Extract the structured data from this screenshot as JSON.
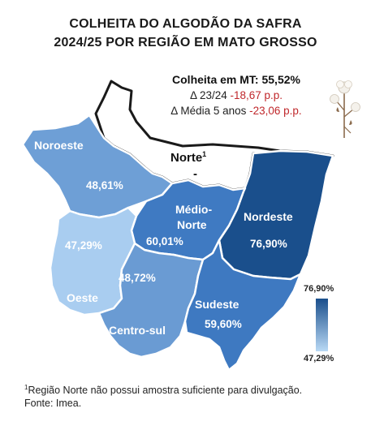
{
  "title": {
    "line1": "COLHEITA DO ALGODÃO DA SAFRA",
    "line2": "2024/25 POR REGIÃO EM MATO GROSSO"
  },
  "summary": {
    "harvest_label": "Colheita em MT:",
    "harvest_value": "55,52%",
    "delta_year_label": "Δ 23/24",
    "delta_year_value": "-18,67 p.p.",
    "delta_avg_label": "Δ Média 5 anos",
    "delta_avg_value": "-23,06 p.p."
  },
  "regions": [
    {
      "id": "noroeste",
      "name": "Noroeste",
      "value": "48,61%",
      "numeric": 48.61,
      "color": "#6e9fd6"
    },
    {
      "id": "norte",
      "name": "Norte",
      "sup": "1",
      "value": "-",
      "numeric": null,
      "color": "#ffffff"
    },
    {
      "id": "medio-norte",
      "name_line1": "Médio-",
      "name_line2": "Norte",
      "value": "60,01%",
      "numeric": 60.01,
      "color": "#3f7ac2"
    },
    {
      "id": "nordeste",
      "name": "Nordeste",
      "value": "76,90%",
      "numeric": 76.9,
      "color": "#1a4f8c"
    },
    {
      "id": "oeste",
      "name": "Oeste",
      "value": "47,29%",
      "numeric": 47.29,
      "color": "#a9cdf0"
    },
    {
      "id": "centro-sul",
      "name": "Centro-sul",
      "value": "48,72%",
      "numeric": 48.72,
      "color": "#6a9bd3"
    },
    {
      "id": "sudeste",
      "name": "Sudeste",
      "value": "59,60%",
      "numeric": 59.6,
      "color": "#3e79c1"
    }
  ],
  "legend": {
    "max": "76,90%",
    "min": "47,29%",
    "color_max": "#1a4f8c",
    "color_min": "#b9d9f5"
  },
  "footnote": {
    "marker": "1",
    "text": "Região Norte não possui amostra suficiente para divulgação.",
    "source": "Fonte: Imea."
  },
  "icons": [
    "cotton-plant-icon"
  ]
}
